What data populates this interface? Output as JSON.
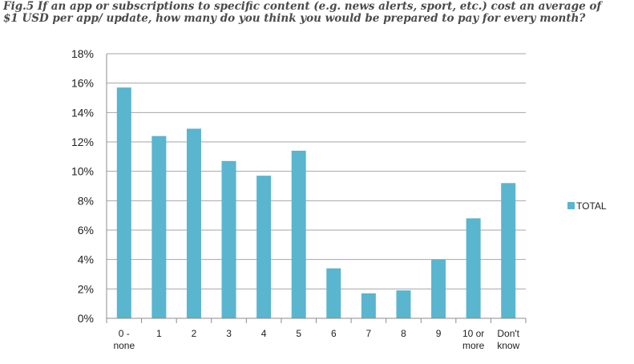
{
  "title": {
    "line1": "Fig.5 If an app or subscriptions to specific content (e.g. news alerts, sport, etc.) cost an average of",
    "line2": "$1 USD per app/ update, how many do you think you would be prepared to pay for every month?"
  },
  "chart_data": {
    "type": "bar",
    "categories": [
      [
        "0 -",
        "none"
      ],
      [
        "1"
      ],
      [
        "2"
      ],
      [
        "3"
      ],
      [
        "4"
      ],
      [
        "5"
      ],
      [
        "6"
      ],
      [
        "7"
      ],
      [
        "8"
      ],
      [
        "9"
      ],
      [
        "10 or",
        "more"
      ],
      [
        "Don't",
        "know"
      ]
    ],
    "series": [
      {
        "name": "TOTAL",
        "values": [
          15.7,
          12.4,
          12.9,
          10.7,
          9.7,
          11.4,
          3.4,
          1.7,
          1.9,
          4.0,
          6.8,
          9.2
        ],
        "color": "#5ab5cf"
      }
    ],
    "y_ticks": [
      "0%",
      "2%",
      "4%",
      "6%",
      "8%",
      "10%",
      "12%",
      "14%",
      "16%",
      "18%"
    ],
    "ylim": [
      0,
      18
    ],
    "ylabel": "",
    "xlabel": "",
    "grid": true,
    "legend": "right"
  },
  "colors": {
    "bar": "#5ab5cf",
    "grid": "#a6a6a6",
    "axis": "#8c8c8c",
    "title": "#4a4a4a"
  }
}
